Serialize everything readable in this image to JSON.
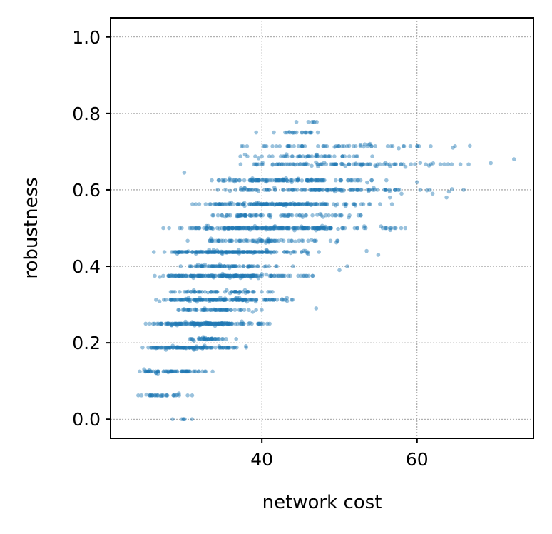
{
  "chart_data": {
    "type": "scatter",
    "xlabel": "network cost",
    "ylabel": "robustness",
    "xlim": [
      20.5,
      75
    ],
    "ylim": [
      -0.05,
      1.05
    ],
    "xticks": [
      40,
      60
    ],
    "yticks": [
      0.0,
      0.2,
      0.4,
      0.6,
      0.8,
      1.0
    ],
    "xtick_labels": [
      "40",
      "60"
    ],
    "ytick_labels": [
      "0.0",
      "0.2",
      "0.4",
      "0.6",
      "0.8",
      "1.0"
    ],
    "grid": true,
    "marker_color": "#1f77b4",
    "marker_opacity": 0.45,
    "density_bands": [
      {
        "y": 0.0,
        "x_min": 28,
        "x_max": 31.5,
        "count": 4
      },
      {
        "y": 0.0625,
        "x_min": 22.5,
        "x_max": 32,
        "count": 30
      },
      {
        "y": 0.125,
        "x_min": 23,
        "x_max": 35,
        "count": 70
      },
      {
        "y": 0.1875,
        "x_min": 23.5,
        "x_max": 38.5,
        "count": 130
      },
      {
        "y": 0.21,
        "x_min": 30,
        "x_max": 37,
        "count": 40
      },
      {
        "y": 0.25,
        "x_min": 24,
        "x_max": 42.5,
        "count": 160
      },
      {
        "y": 0.2857,
        "x_min": 28,
        "x_max": 41,
        "count": 60
      },
      {
        "y": 0.3125,
        "x_min": 24,
        "x_max": 46,
        "count": 160
      },
      {
        "y": 0.3333,
        "x_min": 27,
        "x_max": 45,
        "count": 60
      },
      {
        "y": 0.375,
        "x_min": 24,
        "x_max": 48,
        "count": 180
      },
      {
        "y": 0.4,
        "x_min": 28,
        "x_max": 45,
        "count": 70
      },
      {
        "y": 0.4375,
        "x_min": 25,
        "x_max": 50,
        "count": 190
      },
      {
        "y": 0.4667,
        "x_min": 30,
        "x_max": 52,
        "count": 80
      },
      {
        "y": 0.5,
        "x_min": 26,
        "x_max": 60.5,
        "count": 230
      },
      {
        "y": 0.5333,
        "x_min": 30,
        "x_max": 57,
        "count": 80
      },
      {
        "y": 0.5625,
        "x_min": 28,
        "x_max": 57,
        "count": 170
      },
      {
        "y": 0.6,
        "x_min": 32,
        "x_max": 66,
        "count": 110
      },
      {
        "y": 0.625,
        "x_min": 31,
        "x_max": 57,
        "count": 120
      },
      {
        "y": 0.6667,
        "x_min": 33,
        "x_max": 69.5,
        "count": 100
      },
      {
        "y": 0.6875,
        "x_min": 36,
        "x_max": 56,
        "count": 50
      },
      {
        "y": 0.7143,
        "x_min": 34,
        "x_max": 67,
        "count": 60
      },
      {
        "y": 0.75,
        "x_min": 38,
        "x_max": 51,
        "count": 20
      },
      {
        "y": 0.7778,
        "x_min": 43,
        "x_max": 49,
        "count": 6
      }
    ],
    "outliers": [
      {
        "x": 72.5,
        "y": 0.68
      },
      {
        "x": 69.5,
        "y": 0.67
      },
      {
        "x": 66.8,
        "y": 0.715
      },
      {
        "x": 64.0,
        "y": 0.667
      },
      {
        "x": 63.5,
        "y": 0.667
      },
      {
        "x": 64.5,
        "y": 0.602
      },
      {
        "x": 66.0,
        "y": 0.6
      },
      {
        "x": 63.8,
        "y": 0.58
      },
      {
        "x": 62.0,
        "y": 0.59
      },
      {
        "x": 60.0,
        "y": 0.62
      },
      {
        "x": 58.0,
        "y": 0.59
      },
      {
        "x": 57.2,
        "y": 0.6
      },
      {
        "x": 56.5,
        "y": 0.58
      },
      {
        "x": 58.5,
        "y": 0.66
      },
      {
        "x": 55.0,
        "y": 0.43
      },
      {
        "x": 53.5,
        "y": 0.44
      },
      {
        "x": 51.0,
        "y": 0.4
      },
      {
        "x": 50.0,
        "y": 0.39
      },
      {
        "x": 47.0,
        "y": 0.29
      },
      {
        "x": 41.0,
        "y": 0.25
      },
      {
        "x": 30.0,
        "y": 0.645
      },
      {
        "x": 28.5,
        "y": 0.0
      },
      {
        "x": 31.0,
        "y": 0.0
      },
      {
        "x": 27.0,
        "y": 0.06
      }
    ]
  }
}
